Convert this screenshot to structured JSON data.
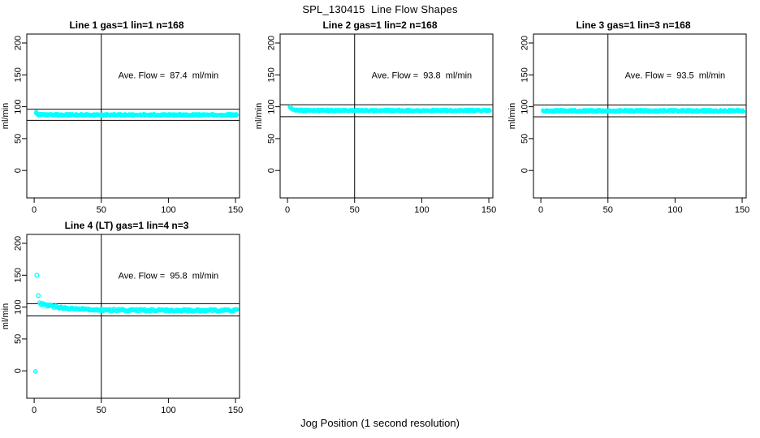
{
  "figure": {
    "title": "SPL_130415  Line Flow Shapes",
    "xlabel": "Jog Position (1 second resolution)",
    "background_color": "#FFFFFF",
    "point_color": "#00FFFF",
    "axis_color": "#000000",
    "text_color": "#000000"
  },
  "chart_data": [
    {
      "type": "scatter",
      "title": "Line 1 gas=1 lin=1 n=168",
      "ylabel": "ml/min",
      "annotation": "Ave. Flow =  87.4  ml/min",
      "annotation_xy": [
        100,
        150
      ],
      "ave_flow_ml_min": 87.4,
      "xticks": [
        0,
        50,
        100,
        150
      ],
      "yticks": [
        0,
        50,
        100,
        150,
        200
      ],
      "xlim": [
        -5.5,
        153
      ],
      "ylim": [
        -43,
        214
      ],
      "vline_x": 50,
      "hlines": [
        78.7,
        96.1
      ],
      "grid": false,
      "legend": null,
      "band": {
        "x_start": 1.5,
        "x_end": 151,
        "step": 0.35,
        "start_y": 90.5,
        "settle_y": 87.2,
        "tau": 1.5,
        "jitter": 1.5,
        "radius": 1.8
      },
      "outliers": [
        [
          1.5,
          90.5,
          2.2
        ]
      ]
    },
    {
      "type": "scatter",
      "title": "Line 2 gas=1 lin=2 n=168",
      "ylabel": "ml/min",
      "annotation": "Ave. Flow =  93.8  ml/min",
      "annotation_xy": [
        100,
        150
      ],
      "ave_flow_ml_min": 93.8,
      "xticks": [
        0,
        50,
        100,
        150
      ],
      "yticks": [
        0,
        50,
        100,
        150,
        200
      ],
      "xlim": [
        -5.5,
        153
      ],
      "ylim": [
        -43,
        214
      ],
      "vline_x": 50,
      "hlines": [
        84.4,
        103.2
      ],
      "grid": false,
      "legend": null,
      "band": {
        "x_start": 2,
        "x_end": 151,
        "step": 0.35,
        "start_y": 99.5,
        "settle_y": 94,
        "tau": 1.8,
        "jitter": 1.5,
        "radius": 1.8
      },
      "outliers": [
        [
          2,
          99.5,
          2.4
        ]
      ]
    },
    {
      "type": "scatter",
      "title": "Line 3 gas=1 lin=3 n=168",
      "ylabel": "ml/min",
      "annotation": "Ave. Flow =  93.5  ml/min",
      "annotation_xy": [
        100,
        150
      ],
      "ave_flow_ml_min": 93.5,
      "xticks": [
        0,
        50,
        100,
        150
      ],
      "yticks": [
        0,
        50,
        100,
        150,
        200
      ],
      "xlim": [
        -5.5,
        153
      ],
      "ylim": [
        -43,
        214
      ],
      "vline_x": 50,
      "hlines": [
        84.2,
        102.9
      ],
      "grid": false,
      "legend": null,
      "band": {
        "x_start": 1.5,
        "x_end": 151,
        "step": 0.35,
        "start_y": 93.5,
        "settle_y": 93.5,
        "tau": 1,
        "jitter": 1.7,
        "radius": 1.8
      },
      "outliers": []
    },
    {
      "type": "scatter",
      "title": "Line 4 (LT) gas=1 lin=4 n=3",
      "ylabel": "ml/min",
      "annotation": "Ave. Flow =  95.8  ml/min",
      "annotation_xy": [
        100,
        150
      ],
      "ave_flow_ml_min": 95.8,
      "xticks": [
        0,
        50,
        100,
        150
      ],
      "yticks": [
        0,
        50,
        100,
        150,
        200
      ],
      "xlim": [
        -5.5,
        153
      ],
      "ylim": [
        -43,
        214
      ],
      "vline_x": 50,
      "hlines": [
        86.2,
        105.4
      ],
      "grid": false,
      "legend": null,
      "band": {
        "x_start": 4,
        "x_end": 151,
        "step": 0.7,
        "start_y": 106,
        "settle_y": 94.8,
        "tau": 18,
        "jitter": 1.6,
        "radius": 2.2
      },
      "outliers": [
        [
          1,
          -1,
          2.2
        ],
        [
          2,
          150,
          2.4
        ],
        [
          3,
          118,
          2.3
        ]
      ]
    }
  ]
}
